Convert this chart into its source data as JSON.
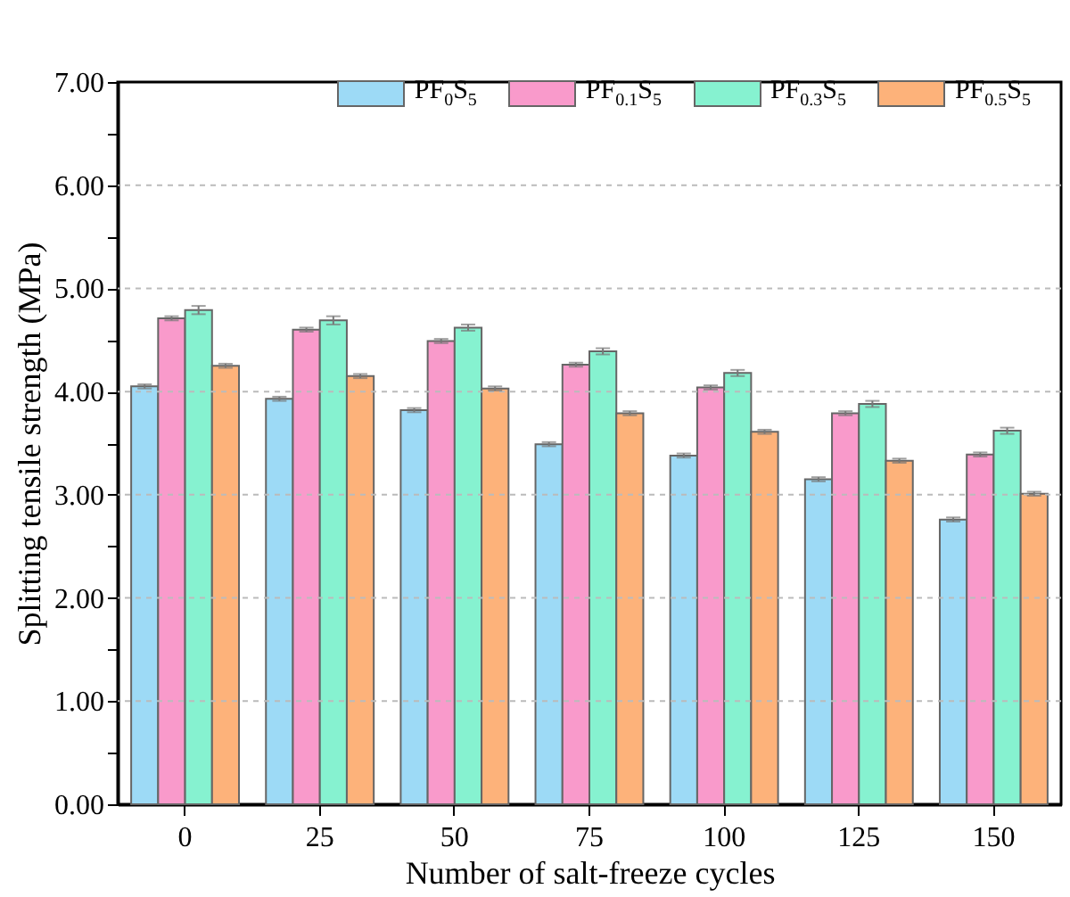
{
  "chart_data": {
    "type": "bar",
    "xlabel": "Number of salt-freeze cycles",
    "ylabel": "Splitting tensile strength (MPa)",
    "categories": [
      "0",
      "25",
      "50",
      "75",
      "100",
      "125",
      "150"
    ],
    "series": [
      {
        "name": "PF$_{0}$S$_{5}$",
        "color": "#9ddaf6",
        "values": [
          4.05,
          3.93,
          3.82,
          3.49,
          3.38,
          3.15,
          2.76
        ],
        "errors": [
          0.02,
          0.02,
          0.02,
          0.02,
          0.02,
          0.02,
          0.02
        ]
      },
      {
        "name": "PF$_{0.1}$S$_{5}$",
        "color": "#f99acb",
        "values": [
          4.71,
          4.6,
          4.49,
          4.26,
          4.04,
          3.79,
          3.39
        ],
        "errors": [
          0.02,
          0.02,
          0.02,
          0.02,
          0.02,
          0.02,
          0.02
        ]
      },
      {
        "name": "PF$_{0.3}$S$_{5}$",
        "color": "#86f2d0",
        "values": [
          4.79,
          4.69,
          4.62,
          4.39,
          4.18,
          3.88,
          3.62
        ],
        "errors": [
          0.04,
          0.04,
          0.03,
          0.03,
          0.03,
          0.03,
          0.03
        ]
      },
      {
        "name": "PF$_{0.5}$S$_{5}$",
        "color": "#fdb27a",
        "values": [
          4.25,
          4.15,
          4.03,
          3.79,
          3.61,
          3.33,
          3.01
        ],
        "errors": [
          0.02,
          0.02,
          0.02,
          0.02,
          0.02,
          0.02,
          0.02
        ]
      }
    ],
    "ylim": [
      0,
      7
    ],
    "yticks": [
      {
        "value": 0,
        "label": "0.00"
      },
      {
        "value": 0.5,
        "label": null
      },
      {
        "value": 1,
        "label": "1.00"
      },
      {
        "value": 1.5,
        "label": null
      },
      {
        "value": 2,
        "label": "2.00"
      },
      {
        "value": 2.5,
        "label": null
      },
      {
        "value": 3,
        "label": "3.00"
      },
      {
        "value": 3.5,
        "label": null
      },
      {
        "value": 4,
        "label": "4.00"
      },
      {
        "value": 4.5,
        "label": null
      },
      {
        "value": 5,
        "label": "5.00"
      },
      {
        "value": 5.5,
        "label": null
      },
      {
        "value": 6,
        "label": "6.00"
      },
      {
        "value": 6.5,
        "label": null
      },
      {
        "value": 7,
        "label": "7.00"
      }
    ],
    "grid": "y",
    "legend": "top right"
  }
}
